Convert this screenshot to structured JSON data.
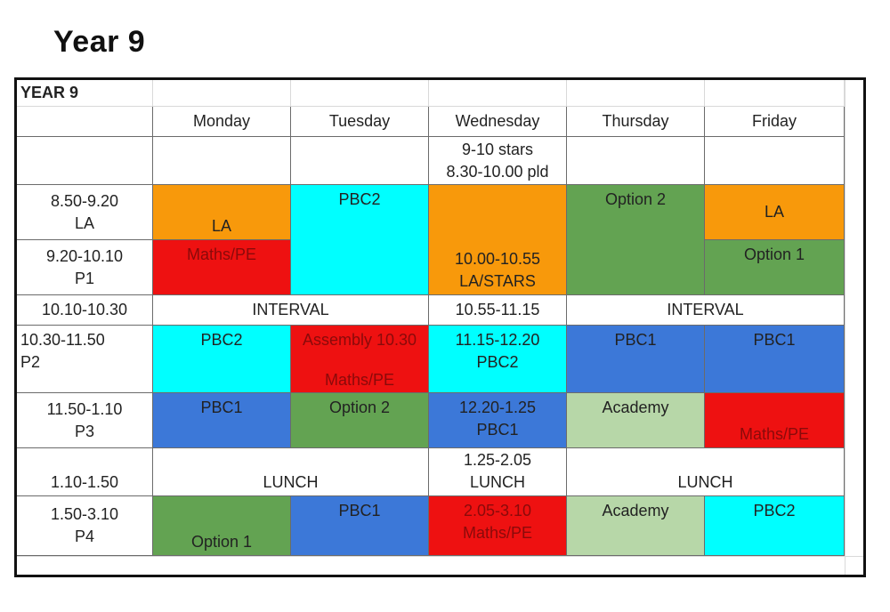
{
  "page_title": "Year 9",
  "table": {
    "corner_label": "YEAR 9",
    "days": [
      "Monday",
      "Tuesday",
      "Wednesday",
      "Thursday",
      "Friday"
    ],
    "rows": {
      "pre": {
        "wed_line1": "9-10 stars",
        "wed_line2": "8.30-10.00 pld"
      },
      "r1": {
        "time": "8.50-9.20",
        "sub": "LA"
      },
      "r2": {
        "time": "9.20-10.10",
        "sub": "P1"
      },
      "r3": {
        "time": "10.10-10.30"
      },
      "r4": {
        "time": "10.30-11.50",
        "sub": "P2"
      },
      "r5": {
        "time": "11.50-1.10",
        "sub": "P3"
      },
      "r6": {
        "time": "1.10-1.50"
      },
      "r7": {
        "time": "1.50-3.10",
        "sub": "P4"
      }
    },
    "cells": {
      "mon_r1": "LA",
      "tue_r1r2": "PBC2",
      "wed_r1r2_line1": "10.00-10.55",
      "wed_r1r2_line2": "LA/STARS",
      "thu_r1r2": "Option 2",
      "fri_r1": "LA",
      "mon_r2": "Maths/PE",
      "fri_r2": "Option 1",
      "interval_left": "INTERVAL",
      "wed_r3": "10.55-11.15",
      "interval_right": "INTERVAL",
      "mon_r4": "PBC2",
      "tue_r4_line1": "Assembly 10.30",
      "tue_r4_line2": "Maths/PE",
      "wed_r4_line1": "11.15-12.20",
      "wed_r4_line2": "PBC2",
      "thu_r4": "PBC1",
      "fri_r4": "PBC1",
      "mon_r5": "PBC1",
      "tue_r5": "Option 2",
      "wed_r5_line1": "12.20-1.25",
      "wed_r5_line2": "PBC1",
      "thu_r5": "Academy",
      "fri_r5": "Maths/PE",
      "lunch_left": "LUNCH",
      "wed_r6_line1": "1.25-2.05",
      "wed_r6_line2": "LUNCH",
      "lunch_right": "LUNCH",
      "mon_r7": "Option 1",
      "tue_r7": "PBC1",
      "wed_r7_line1": "2.05-3.10",
      "wed_r7_line2": "Maths/PE",
      "thu_r7": "Academy",
      "fri_r7": "PBC2"
    }
  },
  "colors": {
    "orange": "#f8990b",
    "cyan": "#00ffff",
    "green": "#63a352",
    "light_green": "#b7d7a8",
    "red": "#ee1111",
    "blue": "#3c78d8"
  }
}
